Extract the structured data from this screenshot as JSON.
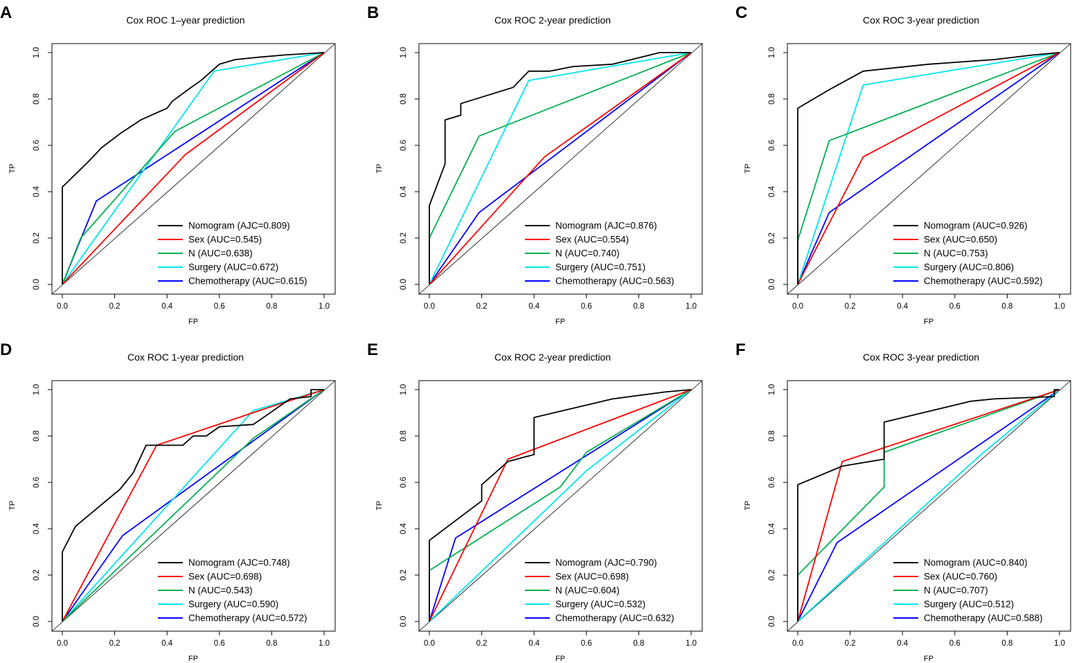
{
  "figure": {
    "panel_count": 6
  },
  "legend_labels": [
    "Nomogram",
    "Sex",
    "N",
    "Surgery",
    "Chemotherapy"
  ],
  "chart_data": [
    {
      "type": "line",
      "letter": "A",
      "title": "Cox ROC 1–year prediction",
      "xlabel": "FP",
      "ylabel": "TP",
      "xlim": [
        0,
        1
      ],
      "ylim": [
        0,
        1
      ],
      "xticks": [
        "0.0",
        "0.2",
        "0.4",
        "0.6",
        "0.8",
        "1.0"
      ],
      "yticks": [
        "0.0",
        "0.2",
        "0.4",
        "0.6",
        "0.8",
        "1.0"
      ],
      "series": [
        {
          "name": "Nomogram",
          "legend": "Nomogram (AJC=0.809)",
          "color": "#000000",
          "points": [
            [
              0,
              0
            ],
            [
              0,
              0.42
            ],
            [
              0.1,
              0.53
            ],
            [
              0.15,
              0.59
            ],
            [
              0.22,
              0.65
            ],
            [
              0.3,
              0.71
            ],
            [
              0.36,
              0.74
            ],
            [
              0.4,
              0.76
            ],
            [
              0.42,
              0.79
            ],
            [
              0.48,
              0.84
            ],
            [
              0.53,
              0.88
            ],
            [
              0.6,
              0.95
            ],
            [
              0.66,
              0.97
            ],
            [
              0.75,
              0.98
            ],
            [
              0.85,
              0.99
            ],
            [
              1,
              1
            ]
          ]
        },
        {
          "name": "Sex",
          "legend": "Sex (AUC=0.545)",
          "color": "#ff0000",
          "points": [
            [
              0,
              0
            ],
            [
              0.47,
              0.56
            ],
            [
              1,
              1
            ]
          ]
        },
        {
          "name": "N",
          "legend": "N (AUC=0.638)",
          "color": "#00b050",
          "points": [
            [
              0,
              0
            ],
            [
              0.07,
              0.2
            ],
            [
              0.43,
              0.66
            ],
            [
              1,
              1
            ]
          ]
        },
        {
          "name": "Surgery",
          "legend": "Surgery (AUC=0.672)",
          "color": "#00e5ee",
          "points": [
            [
              0,
              0
            ],
            [
              0.58,
              0.92
            ],
            [
              1,
              1
            ]
          ]
        },
        {
          "name": "Chemotherapy",
          "legend": "Chemotherapy (AUC=0.615)",
          "color": "#0000ff",
          "points": [
            [
              0,
              0
            ],
            [
              0.13,
              0.36
            ],
            [
              1,
              1
            ]
          ]
        }
      ]
    },
    {
      "type": "line",
      "letter": "B",
      "title": "Cox  ROC 2-year prediction",
      "xlabel": "FP",
      "ylabel": "TP",
      "xlim": [
        0,
        1
      ],
      "ylim": [
        0,
        1
      ],
      "xticks": [
        "0.0",
        "0.2",
        "0.4",
        "0.6",
        "0.8",
        "1.0"
      ],
      "yticks": [
        "0.0",
        "0.2",
        "0.4",
        "0.6",
        "0.8",
        "1.0"
      ],
      "series": [
        {
          "name": "Nomogram",
          "legend": "Nomogram (AJC=0.876)",
          "color": "#000000",
          "points": [
            [
              0,
              0
            ],
            [
              0,
              0.34
            ],
            [
              0.06,
              0.52
            ],
            [
              0.06,
              0.71
            ],
            [
              0.12,
              0.73
            ],
            [
              0.12,
              0.78
            ],
            [
              0.32,
              0.85
            ],
            [
              0.38,
              0.92
            ],
            [
              0.46,
              0.92
            ],
            [
              0.55,
              0.94
            ],
            [
              0.7,
              0.95
            ],
            [
              0.88,
              1
            ],
            [
              1,
              1
            ]
          ]
        },
        {
          "name": "Sex",
          "legend": "Sex (AUC=0.554)",
          "color": "#ff0000",
          "points": [
            [
              0,
              0
            ],
            [
              0.44,
              0.55
            ],
            [
              1,
              1
            ]
          ]
        },
        {
          "name": "N",
          "legend": "N (AUC=0.740)",
          "color": "#00b050",
          "points": [
            [
              0,
              0
            ],
            [
              0,
              0.2
            ],
            [
              0.19,
              0.64
            ],
            [
              1,
              1
            ]
          ]
        },
        {
          "name": "Surgery",
          "legend": "Surgery (AUC=0.751)",
          "color": "#00e5ee",
          "points": [
            [
              0,
              0
            ],
            [
              0.38,
              0.88
            ],
            [
              1,
              1
            ]
          ]
        },
        {
          "name": "Chemotherapy",
          "legend": "Chemotherapy (AUC=0.563)",
          "color": "#0000ff",
          "points": [
            [
              0,
              0
            ],
            [
              0.19,
              0.31
            ],
            [
              1,
              1
            ]
          ]
        }
      ]
    },
    {
      "type": "line",
      "letter": "C",
      "title": "Cox  ROC 3-year prediction",
      "xlabel": "FP",
      "ylabel": "TP",
      "xlim": [
        0,
        1
      ],
      "ylim": [
        0,
        1
      ],
      "xticks": [
        "0.0",
        "0.2",
        "0.4",
        "0.6",
        "0.8",
        "1.0"
      ],
      "yticks": [
        "0.0",
        "0.2",
        "0.4",
        "0.6",
        "0.8",
        "1.0"
      ],
      "series": [
        {
          "name": "Nomogram",
          "legend": "Nomogram (AUC=0.926)",
          "color": "#000000",
          "points": [
            [
              0,
              0
            ],
            [
              0,
              0.76
            ],
            [
              0.12,
              0.84
            ],
            [
              0.25,
              0.92
            ],
            [
              0.5,
              0.95
            ],
            [
              0.75,
              0.97
            ],
            [
              0.9,
              0.99
            ],
            [
              1,
              1
            ]
          ]
        },
        {
          "name": "Sex",
          "legend": "Sex (AUC=0.650)",
          "color": "#ff0000",
          "points": [
            [
              0,
              0
            ],
            [
              0.25,
              0.55
            ],
            [
              1,
              1
            ]
          ]
        },
        {
          "name": "N",
          "legend": "N (AUC=0.753)",
          "color": "#00b050",
          "points": [
            [
              0,
              0
            ],
            [
              0,
              0.19
            ],
            [
              0.12,
              0.62
            ],
            [
              1,
              1
            ]
          ]
        },
        {
          "name": "Surgery",
          "legend": "Surgery (AUC=0.806)",
          "color": "#00e5ee",
          "points": [
            [
              0,
              0
            ],
            [
              0.25,
              0.86
            ],
            [
              1,
              1
            ]
          ]
        },
        {
          "name": "Chemotherapy",
          "legend": "Chemotherapy (AUC=0.592)",
          "color": "#0000ff",
          "points": [
            [
              0,
              0
            ],
            [
              0.12,
              0.31
            ],
            [
              1,
              1
            ]
          ]
        }
      ]
    },
    {
      "type": "line",
      "letter": "D",
      "title": "Cox  ROC 1-year prediction",
      "xlabel": "FP",
      "ylabel": "TP",
      "xlim": [
        0,
        1
      ],
      "ylim": [
        0,
        1
      ],
      "xticks": [
        "0.0",
        "0.2",
        "0.4",
        "0.6",
        "0.8",
        "1.0"
      ],
      "yticks": [
        "0.0",
        "0.2",
        "0.4",
        "0.6",
        "0.8",
        "1.0"
      ],
      "series": [
        {
          "name": "Nomogram",
          "legend": "Nomogram (AJC=0.748)",
          "color": "#000000",
          "points": [
            [
              0,
              0
            ],
            [
              0,
              0.3
            ],
            [
              0.05,
              0.41
            ],
            [
              0.22,
              0.57
            ],
            [
              0.27,
              0.64
            ],
            [
              0.32,
              0.76
            ],
            [
              0.46,
              0.76
            ],
            [
              0.5,
              0.8
            ],
            [
              0.55,
              0.8
            ],
            [
              0.6,
              0.84
            ],
            [
              0.73,
              0.85
            ],
            [
              0.87,
              0.96
            ],
            [
              0.95,
              0.97
            ],
            [
              0.95,
              1
            ],
            [
              1,
              1
            ]
          ]
        },
        {
          "name": "Sex",
          "legend": "Sex (AUC=0.698)",
          "color": "#ff0000",
          "points": [
            [
              0,
              0
            ],
            [
              0.36,
              0.76
            ],
            [
              0.78,
              0.92
            ],
            [
              1,
              1
            ]
          ]
        },
        {
          "name": "N",
          "legend": "N (AUC=0.543)",
          "color": "#00b050",
          "points": [
            [
              0,
              0
            ],
            [
              0.24,
              0.26
            ],
            [
              0.73,
              0.79
            ],
            [
              1,
              1
            ]
          ]
        },
        {
          "name": "Surgery",
          "legend": "Surgery (AUC=0.590)",
          "color": "#00e5ee",
          "points": [
            [
              0,
              0
            ],
            [
              0.73,
              0.91
            ],
            [
              1,
              1
            ]
          ]
        },
        {
          "name": "Chemotherapy",
          "legend": "Chemotherapy (AUC=0.572)",
          "color": "#0000ff",
          "points": [
            [
              0,
              0
            ],
            [
              0.23,
              0.37
            ],
            [
              1,
              1
            ]
          ]
        }
      ]
    },
    {
      "type": "line",
      "letter": "E",
      "title": "Cox  ROC 2-year prediction",
      "xlabel": "FP",
      "ylabel": "TP",
      "xlim": [
        0,
        1
      ],
      "ylim": [
        0,
        1
      ],
      "xticks": [
        "0.0",
        "0.2",
        "0.4",
        "0.6",
        "0.8",
        "1.0"
      ],
      "yticks": [
        "0.0",
        "0.2",
        "0.4",
        "0.6",
        "0.8",
        "1.0"
      ],
      "series": [
        {
          "name": "Nomogram",
          "legend": "Nomogram (AJC=0.790)",
          "color": "#000000",
          "points": [
            [
              0,
              0
            ],
            [
              0,
              0.35
            ],
            [
              0.2,
              0.52
            ],
            [
              0.2,
              0.59
            ],
            [
              0.3,
              0.69
            ],
            [
              0.4,
              0.72
            ],
            [
              0.4,
              0.88
            ],
            [
              0.7,
              0.96
            ],
            [
              0.9,
              0.99
            ],
            [
              1,
              1
            ]
          ]
        },
        {
          "name": "Sex",
          "legend": "Sex (AUC=0.698)",
          "color": "#ff0000",
          "points": [
            [
              0,
              0
            ],
            [
              0.3,
              0.7
            ],
            [
              1,
              1
            ]
          ]
        },
        {
          "name": "N",
          "legend": "N (AUC=0.604)",
          "color": "#00b050",
          "points": [
            [
              0,
              0
            ],
            [
              0,
              0.22
            ],
            [
              0.5,
              0.58
            ],
            [
              0.6,
              0.73
            ],
            [
              1,
              1
            ]
          ]
        },
        {
          "name": "Surgery",
          "legend": "Surgery (AUC=0.532)",
          "color": "#00e5ee",
          "points": [
            [
              0,
              0
            ],
            [
              0.6,
              0.65
            ],
            [
              1,
              1
            ]
          ]
        },
        {
          "name": "Chemotherapy",
          "legend": "Chemotherapy (AUC=0.632)",
          "color": "#0000ff",
          "points": [
            [
              0,
              0
            ],
            [
              0.1,
              0.36
            ],
            [
              1,
              1
            ]
          ]
        }
      ]
    },
    {
      "type": "line",
      "letter": "F",
      "title": "Cox  ROC 3-year prediction",
      "xlabel": "FP",
      "ylabel": "TP",
      "xlim": [
        0,
        1
      ],
      "ylim": [
        0,
        1
      ],
      "xticks": [
        "0.0",
        "0.2",
        "0.4",
        "0.6",
        "0.8",
        "1.0"
      ],
      "yticks": [
        "0.0",
        "0.2",
        "0.4",
        "0.6",
        "0.8",
        "1.0"
      ],
      "series": [
        {
          "name": "Nomogram",
          "legend": "Nomogram (AUC=0.840)",
          "color": "#000000",
          "points": [
            [
              0,
              0
            ],
            [
              0,
              0.59
            ],
            [
              0.17,
              0.67
            ],
            [
              0.33,
              0.7
            ],
            [
              0.33,
              0.86
            ],
            [
              0.66,
              0.95
            ],
            [
              0.75,
              0.96
            ],
            [
              0.98,
              0.97
            ],
            [
              0.98,
              1
            ],
            [
              1,
              1
            ]
          ]
        },
        {
          "name": "Sex",
          "legend": "Sex (AUC=0.760)",
          "color": "#ff0000",
          "points": [
            [
              0,
              0
            ],
            [
              0.17,
              0.69
            ],
            [
              1,
              1
            ]
          ]
        },
        {
          "name": "N",
          "legend": "N (AUC=0.707)",
          "color": "#00b050",
          "points": [
            [
              0,
              0
            ],
            [
              0,
              0.2
            ],
            [
              0.33,
              0.58
            ],
            [
              0.33,
              0.73
            ],
            [
              1,
              1
            ]
          ]
        },
        {
          "name": "Surgery",
          "legend": "Surgery (AUC=0.512)",
          "color": "#00e5ee",
          "points": [
            [
              0,
              0
            ],
            [
              0.7,
              0.72
            ],
            [
              1,
              1
            ]
          ]
        },
        {
          "name": "Chemotherapy",
          "legend": "Chemotherapy (AUC=0.588)",
          "color": "#0000ff",
          "points": [
            [
              0,
              0
            ],
            [
              0.15,
              0.34
            ],
            [
              1,
              1
            ]
          ]
        }
      ]
    }
  ]
}
